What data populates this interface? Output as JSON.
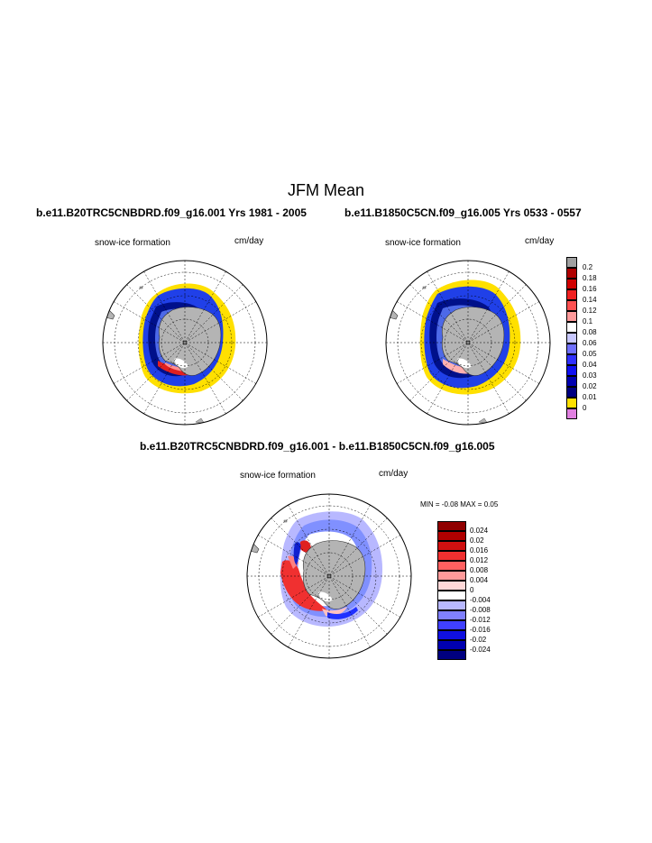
{
  "page": {
    "title": "JFM Mean",
    "left_panel": {
      "subtitle": "b.e11.B20TRC5CNBDRD.f09_g16.001  Yrs 1981 - 2005",
      "left_label": "snow-ice formation",
      "right_label": "cm/day"
    },
    "right_panel": {
      "subtitle": "b.e11.B1850C5CN.f09_g16.005  Yrs 0533 - 0557",
      "left_label": "snow-ice formation",
      "right_label": "cm/day"
    },
    "diff_panel": {
      "subtitle": "b.e11.B20TRC5CNBDRD.f09_g16.001 - b.e11.B1850C5CN.f09_g16.005",
      "left_label": "snow-ice formation",
      "right_label": "cm/day",
      "minmax": "MIN =  -0.08 MAX =   0.05"
    }
  },
  "colorbar_top": {
    "labels": [
      "0.2",
      "0.18",
      "0.16",
      "0.14",
      "0.12",
      "0.1",
      "0.08",
      "0.06",
      "0.05",
      "0.04",
      "0.03",
      "0.02",
      "0.01",
      "0"
    ],
    "colors": [
      "#a0a0a0",
      "#b00000",
      "#d00000",
      "#f02020",
      "#ff5050",
      "#ff9a9a",
      "#ffffff",
      "#c8c8ff",
      "#7070ff",
      "#3030ff",
      "#1010f0",
      "#0000b0",
      "#000080",
      "#ffe000",
      "#e080e0"
    ]
  },
  "colorbar_diff": {
    "labels": [
      "0.024",
      "0.02",
      "0.016",
      "0.012",
      "0.008",
      "0.004",
      "0",
      "-0.004",
      "-0.008",
      "-0.012",
      "-0.016",
      "-0.02",
      "-0.024"
    ],
    "colors": [
      "#900000",
      "#b00000",
      "#d01010",
      "#f03030",
      "#ff6060",
      "#ff9a9a",
      "#ffd8d8",
      "#ffffff",
      "#b8b8ff",
      "#8080ff",
      "#4040ff",
      "#1010e0",
      "#0000b0",
      "#000080"
    ]
  },
  "colors": {
    "land": "#b4b4b4",
    "ocean": "#ffffff",
    "ice_yellow": "#ffe000",
    "ice_blue": "#2030e0",
    "ice_dark": "#000090"
  }
}
